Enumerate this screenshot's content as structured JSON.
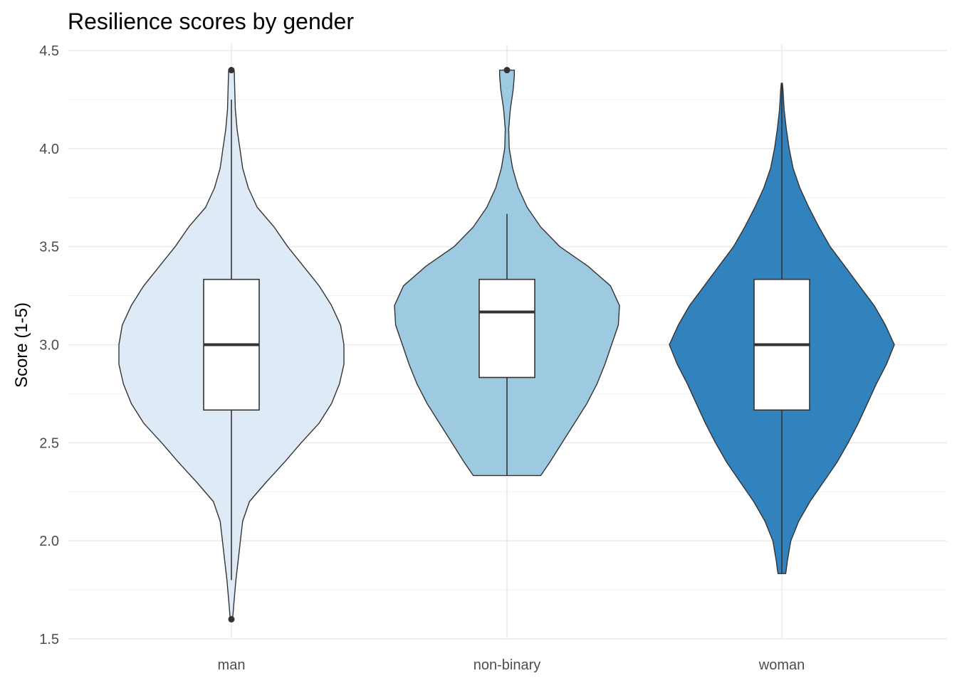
{
  "chart_data": {
    "type": "violin",
    "title": "Resilience scores by gender",
    "xlabel": "",
    "ylabel": "Score (1-5)",
    "ylim": [
      1.5,
      4.5
    ],
    "yticks": [
      "1.5",
      "2.0",
      "2.5",
      "3.0",
      "3.5",
      "4.0",
      "4.5"
    ],
    "categories": [
      "man",
      "non-binary",
      "woman"
    ],
    "grid": true,
    "legend": "none",
    "colors": [
      "#deebf7",
      "#9ecae1",
      "#3182bd"
    ],
    "series": [
      {
        "category": "man",
        "color": "#deebf7",
        "box": {
          "min": 1.8,
          "q1": 2.667,
          "median": 3.0,
          "q3": 3.333,
          "max": 4.25
        },
        "outliers": [
          4.4,
          1.6
        ],
        "density": [
          [
            1.6,
            0.01
          ],
          [
            1.7,
            0.025
          ],
          [
            1.8,
            0.04
          ],
          [
            1.9,
            0.06
          ],
          [
            2.0,
            0.08
          ],
          [
            2.1,
            0.1
          ],
          [
            2.2,
            0.16
          ],
          [
            2.3,
            0.31
          ],
          [
            2.4,
            0.47
          ],
          [
            2.5,
            0.62
          ],
          [
            2.6,
            0.78
          ],
          [
            2.7,
            0.89
          ],
          [
            2.8,
            0.96
          ],
          [
            2.9,
            1.0
          ],
          [
            3.0,
            1.0
          ],
          [
            3.1,
            0.97
          ],
          [
            3.2,
            0.89
          ],
          [
            3.3,
            0.78
          ],
          [
            3.4,
            0.64
          ],
          [
            3.5,
            0.5
          ],
          [
            3.6,
            0.38
          ],
          [
            3.7,
            0.23
          ],
          [
            3.8,
            0.15
          ],
          [
            3.9,
            0.1
          ],
          [
            4.0,
            0.075
          ],
          [
            4.1,
            0.05
          ],
          [
            4.2,
            0.035
          ],
          [
            4.3,
            0.03
          ],
          [
            4.4,
            0.025
          ]
        ]
      },
      {
        "category": "non-binary",
        "color": "#9ecae1",
        "box": {
          "min": 2.333,
          "q1": 2.833,
          "median": 3.167,
          "q3": 3.333,
          "max": 3.667
        },
        "outliers": [
          4.4
        ],
        "density": [
          [
            2.333,
            0.3
          ],
          [
            2.4,
            0.38
          ],
          [
            2.5,
            0.49
          ],
          [
            2.6,
            0.6
          ],
          [
            2.7,
            0.71
          ],
          [
            2.8,
            0.8
          ],
          [
            2.9,
            0.87
          ],
          [
            3.0,
            0.93
          ],
          [
            3.1,
            0.99
          ],
          [
            3.2,
            1.0
          ],
          [
            3.3,
            0.92
          ],
          [
            3.4,
            0.72
          ],
          [
            3.5,
            0.47
          ],
          [
            3.6,
            0.3
          ],
          [
            3.7,
            0.18
          ],
          [
            3.8,
            0.1
          ],
          [
            3.9,
            0.05
          ],
          [
            4.0,
            0.02
          ],
          [
            4.1,
            0.015
          ],
          [
            4.2,
            0.03
          ],
          [
            4.3,
            0.055
          ],
          [
            4.37,
            0.065
          ],
          [
            4.4,
            0.065
          ]
        ]
      },
      {
        "category": "woman",
        "color": "#3182bd",
        "box": {
          "min": 1.833,
          "q1": 2.667,
          "median": 3.0,
          "q3": 3.333,
          "max": 4.333
        },
        "outliers": [],
        "density": [
          [
            1.833,
            0.035
          ],
          [
            1.9,
            0.05
          ],
          [
            2.0,
            0.08
          ],
          [
            2.1,
            0.15
          ],
          [
            2.2,
            0.25
          ],
          [
            2.3,
            0.37
          ],
          [
            2.4,
            0.49
          ],
          [
            2.5,
            0.59
          ],
          [
            2.6,
            0.68
          ],
          [
            2.7,
            0.76
          ],
          [
            2.8,
            0.84
          ],
          [
            2.9,
            0.93
          ],
          [
            3.0,
            1.0
          ],
          [
            3.1,
            0.92
          ],
          [
            3.2,
            0.82
          ],
          [
            3.3,
            0.69
          ],
          [
            3.4,
            0.56
          ],
          [
            3.5,
            0.43
          ],
          [
            3.6,
            0.33
          ],
          [
            3.7,
            0.24
          ],
          [
            3.8,
            0.16
          ],
          [
            3.9,
            0.1
          ],
          [
            4.0,
            0.065
          ],
          [
            4.1,
            0.04
          ],
          [
            4.2,
            0.02
          ],
          [
            4.3,
            0.01
          ],
          [
            4.333,
            0.005
          ]
        ]
      }
    ]
  }
}
